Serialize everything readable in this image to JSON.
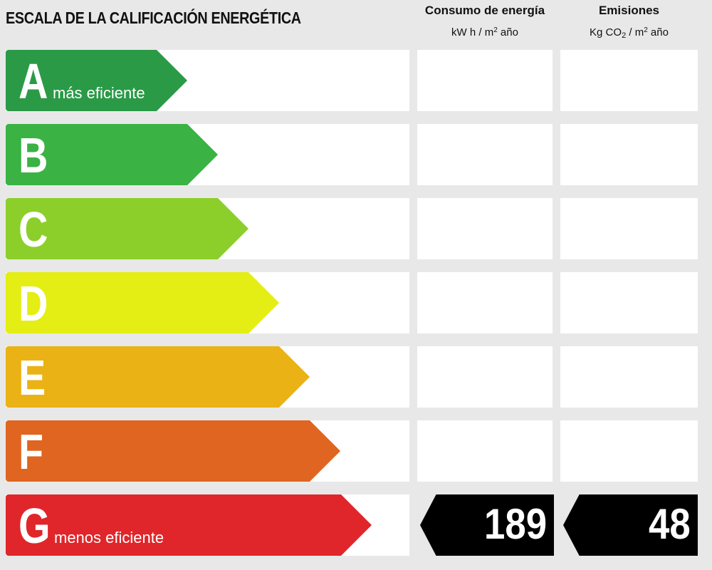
{
  "title": "ESCALA DE LA CALIFICACIÓN ENERGÉTICA",
  "columns": {
    "consumption": {
      "label": "Consumo de energía",
      "unit_prefix": "kW h / m",
      "unit_exp": "2",
      "unit_suffix": " año"
    },
    "emissions": {
      "label": "Emisiones",
      "unit_prefix": "Kg CO",
      "unit_sub": "2",
      "unit_mid": " / m",
      "unit_exp": "2",
      "unit_suffix": "  año"
    }
  },
  "chart_data": {
    "type": "bar",
    "title": "ESCALA DE LA CALIFICACIÓN ENERGÉTICA",
    "categories": [
      "A",
      "B",
      "C",
      "D",
      "E",
      "F",
      "G"
    ],
    "category_notes": {
      "A": "más eficiente",
      "G": "menos eficiente"
    },
    "colors": [
      "#2a9a47",
      "#3bb244",
      "#8ccf2a",
      "#e4ee14",
      "#eab214",
      "#e06520",
      "#e0262a"
    ],
    "rating": "G",
    "consumption_value": "189",
    "emissions_value": "48"
  }
}
